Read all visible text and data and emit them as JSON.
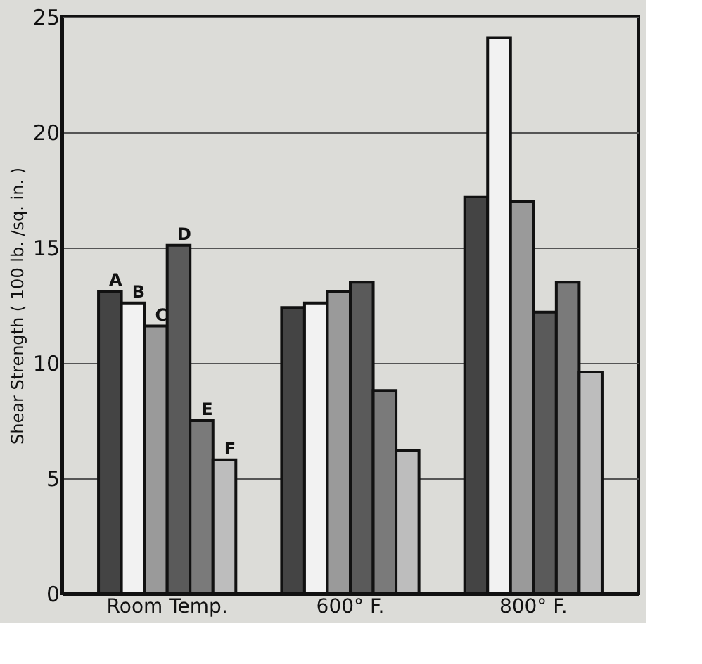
{
  "chart_data": {
    "type": "bar",
    "ylabel": "Shear Strength ( 100 lb. /sq. in. )",
    "categories": [
      "Room Temp.",
      "600° F.",
      "800° F."
    ],
    "series": [
      {
        "name": "A",
        "color": "#444444",
        "values": [
          13.1,
          12.4,
          17.2
        ]
      },
      {
        "name": "B",
        "color": "#f2f2f2",
        "values": [
          12.6,
          12.6,
          24.1
        ]
      },
      {
        "name": "C",
        "color": "#9a9a9a",
        "values": [
          11.6,
          13.1,
          17.0
        ]
      },
      {
        "name": "D",
        "color": "#5a5a5a",
        "values": [
          15.1,
          13.5,
          12.2
        ]
      },
      {
        "name": "E",
        "color": "#7a7a7a",
        "values": [
          7.5,
          8.8,
          13.5
        ]
      },
      {
        "name": "F",
        "color": "#bdbdbd",
        "values": [
          5.8,
          6.2,
          9.6
        ]
      }
    ],
    "ylim": [
      0,
      25
    ],
    "yticks": [
      0,
      5,
      10,
      15,
      20,
      25
    ],
    "grid": "y",
    "legend": false
  }
}
